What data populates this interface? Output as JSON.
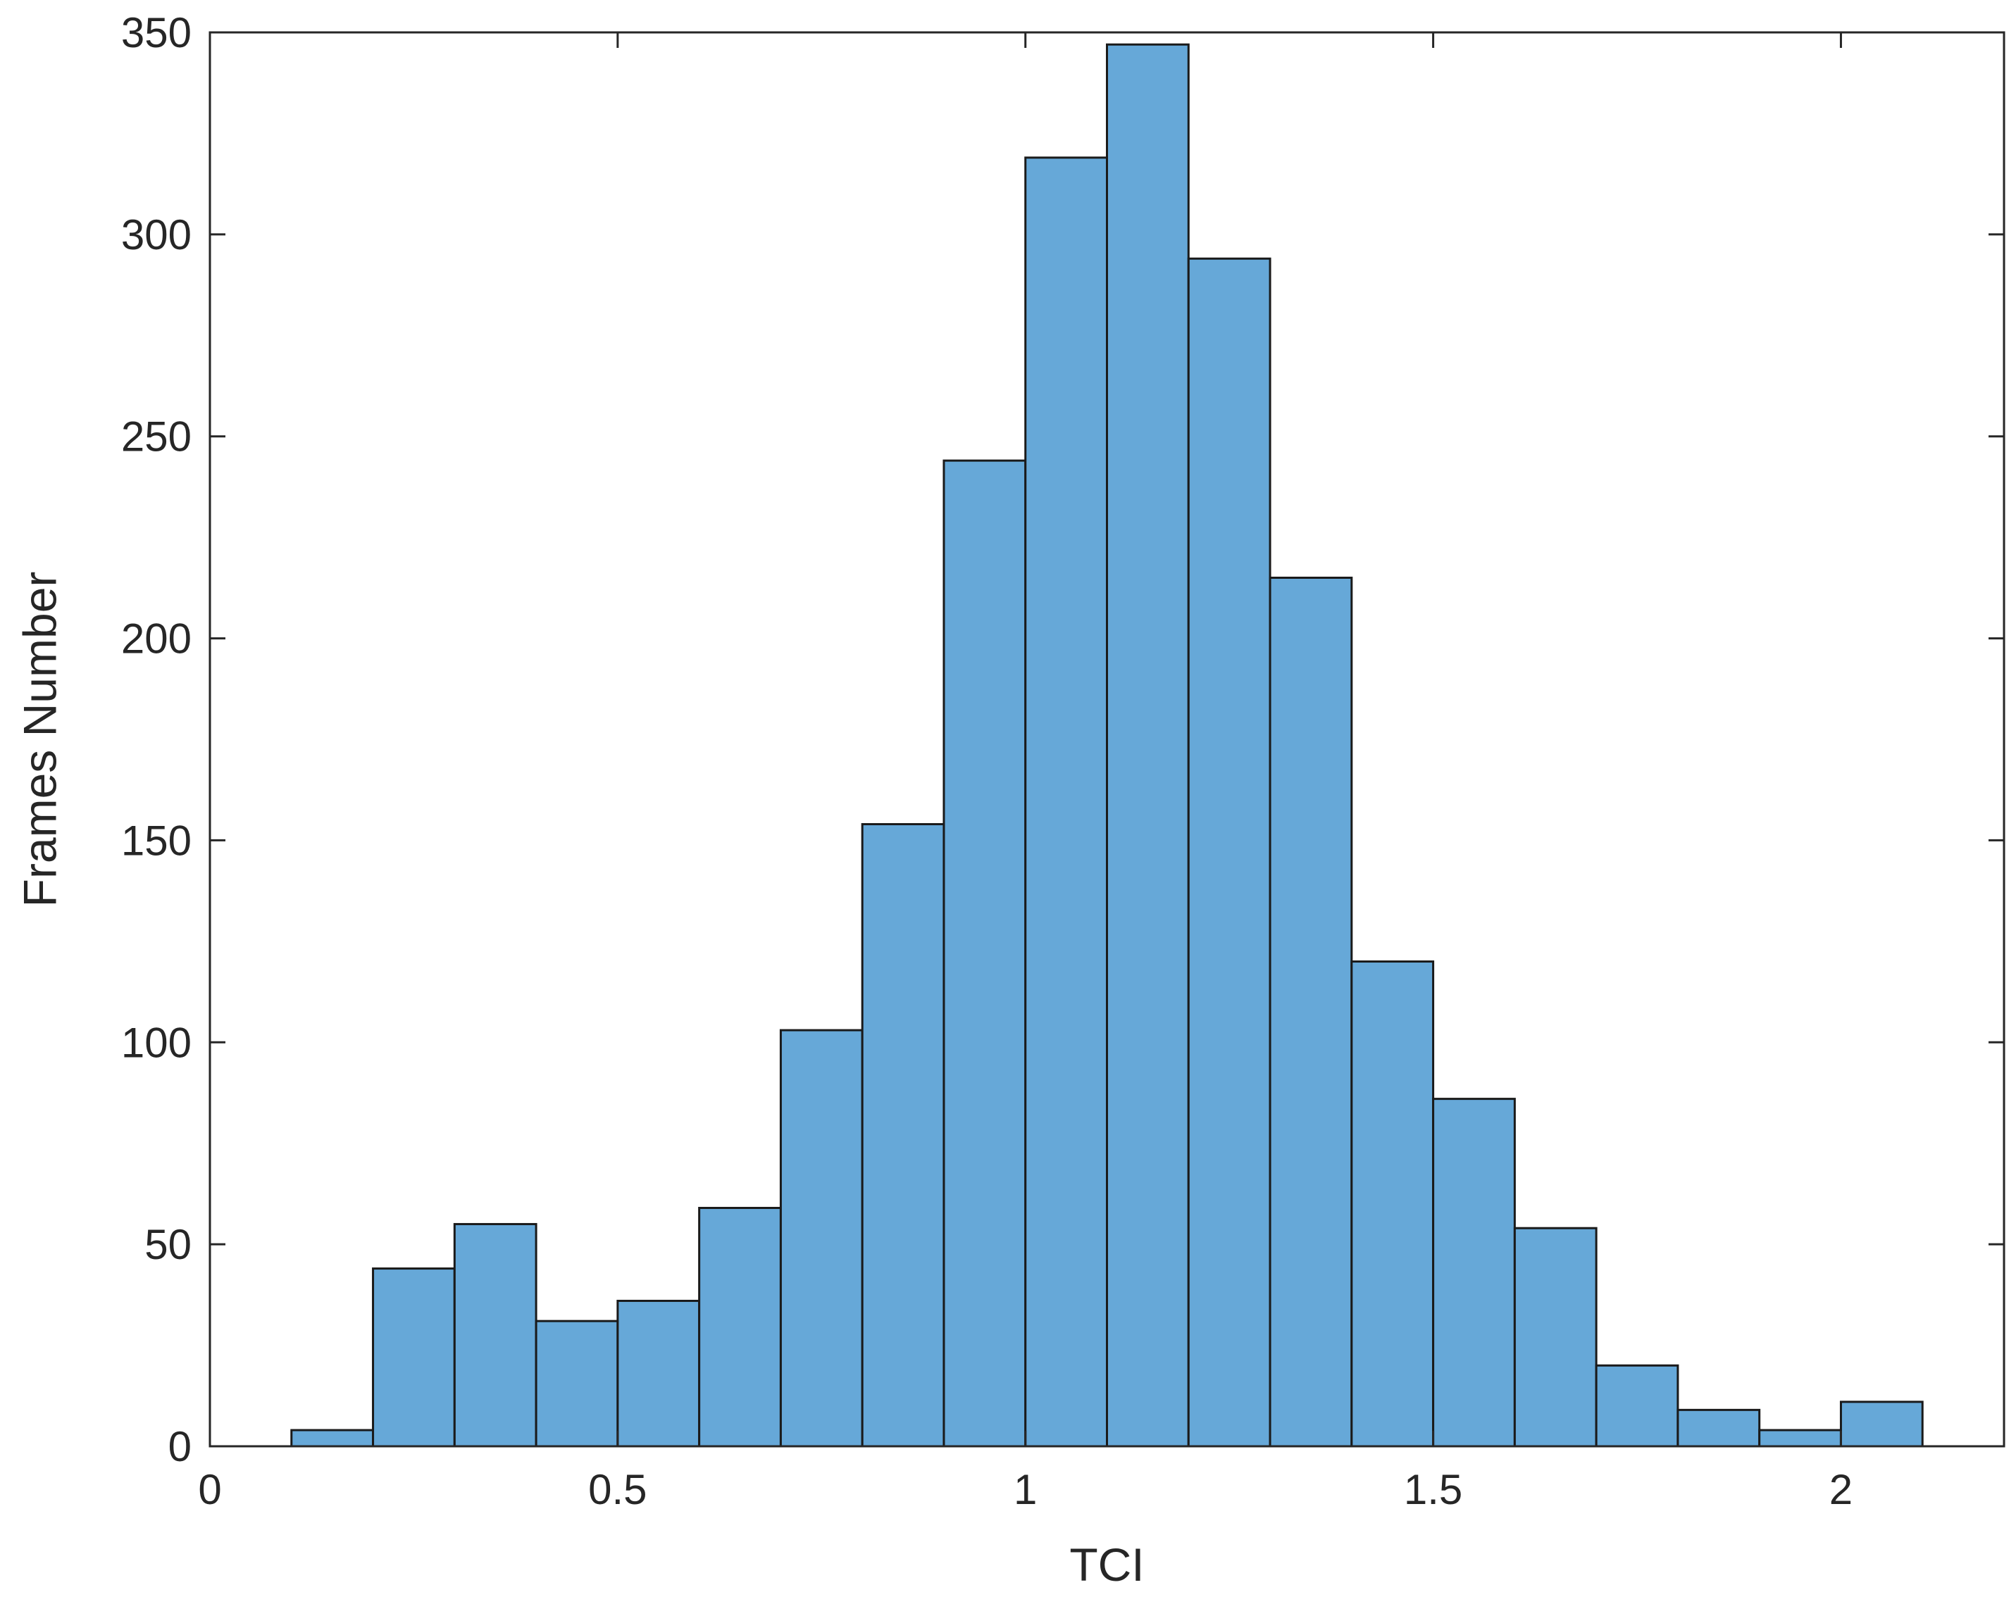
{
  "chart_data": {
    "type": "bar",
    "subtype": "histogram",
    "xlabel": "TCI",
    "ylabel": "Frames Number",
    "xlim": [
      0,
      2.2
    ],
    "ylim": [
      0,
      350
    ],
    "xticks": [
      0,
      0.5,
      1,
      1.5,
      2
    ],
    "xtick_labels": [
      "0",
      "0.5",
      "1",
      "1.5",
      "2"
    ],
    "yticks": [
      0,
      50,
      100,
      150,
      200,
      250,
      300,
      350
    ],
    "ytick_labels": [
      "0",
      "50",
      "100",
      "150",
      "200",
      "250",
      "300",
      "350"
    ],
    "bin_edges": [
      0.1,
      0.2,
      0.3,
      0.4,
      0.5,
      0.6,
      0.7,
      0.8,
      0.9,
      1.0,
      1.1,
      1.2,
      1.3,
      1.4,
      1.5,
      1.6,
      1.7,
      1.8,
      1.9,
      2.0,
      2.1
    ],
    "values": [
      4,
      44,
      55,
      31,
      36,
      59,
      103,
      154,
      244,
      319,
      347,
      294,
      215,
      120,
      86,
      54,
      20,
      9,
      4,
      11
    ],
    "bar_color": "#66a8d8",
    "edge_color": "#1a1a1a",
    "grid": false,
    "legend": null
  }
}
